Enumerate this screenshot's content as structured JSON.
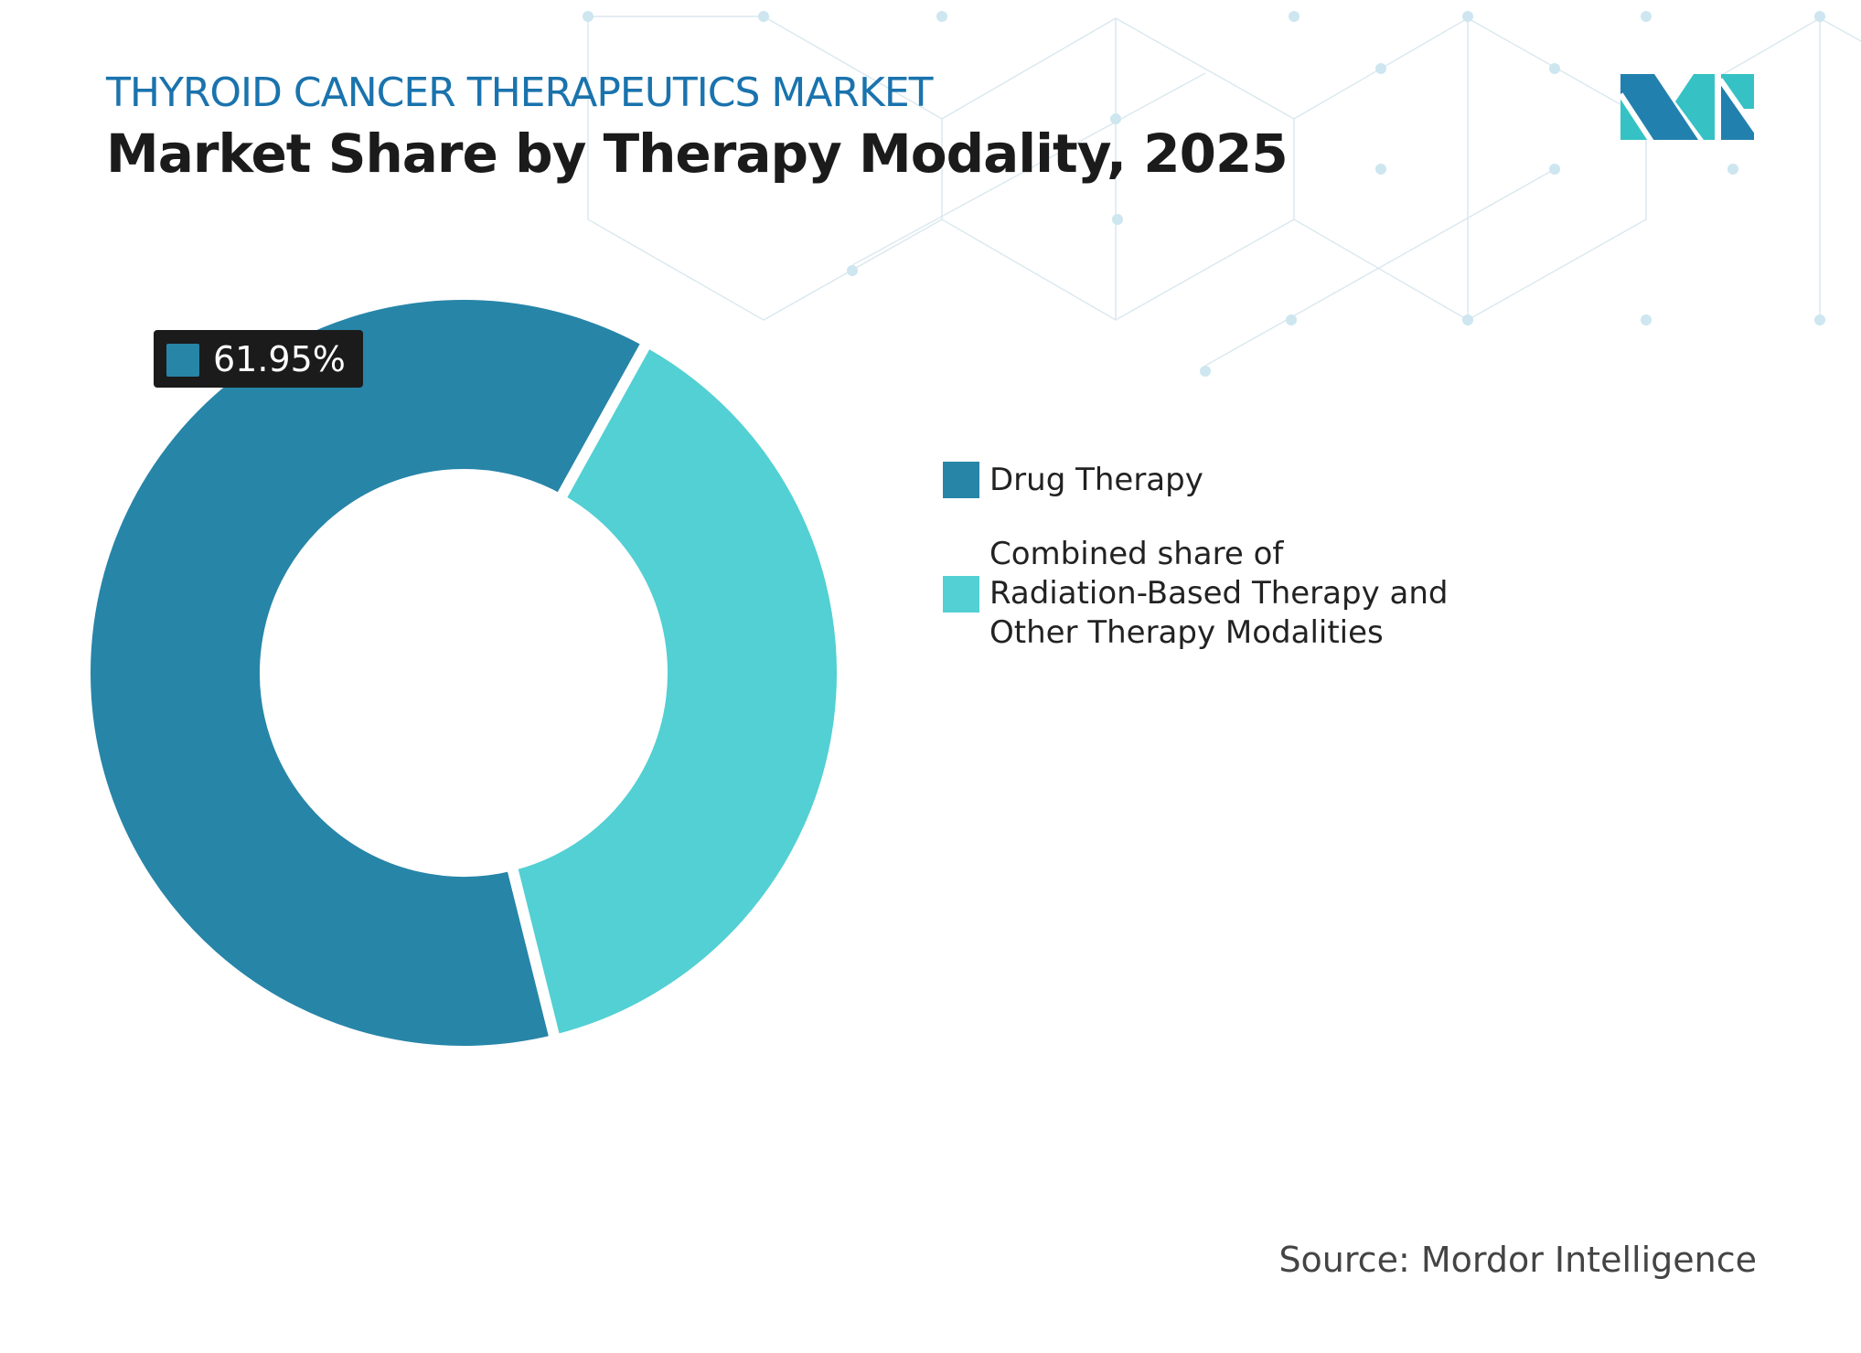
{
  "header": {
    "subtitle": "THYROID CANCER THERAPEUTICS MARKET",
    "title": "Market Share by Therapy Modality, 2025"
  },
  "chart_data": {
    "type": "pie",
    "variant": "donut",
    "categories": [
      "Drug Therapy",
      "Combined share of Radiation-Based Therapy and Other Therapy Modalities"
    ],
    "values": [
      61.95,
      38.05
    ],
    "data_labels": [
      "61.95%"
    ],
    "colors": [
      "#2785a8",
      "#52d0d3"
    ],
    "legend_position": "right"
  },
  "legend": {
    "items": [
      {
        "lines": [
          "Drug Therapy"
        ],
        "color": "#2785a8"
      },
      {
        "lines": [
          "Combined share of",
          "Radiation-Based Therapy and",
          "Other Therapy Modalities"
        ],
        "color": "#52d0d3"
      }
    ]
  },
  "source": "Source: Mordor Intelligence",
  "logo": {
    "text": "MI",
    "colors": [
      "#2280ae",
      "#36c2c4"
    ]
  }
}
